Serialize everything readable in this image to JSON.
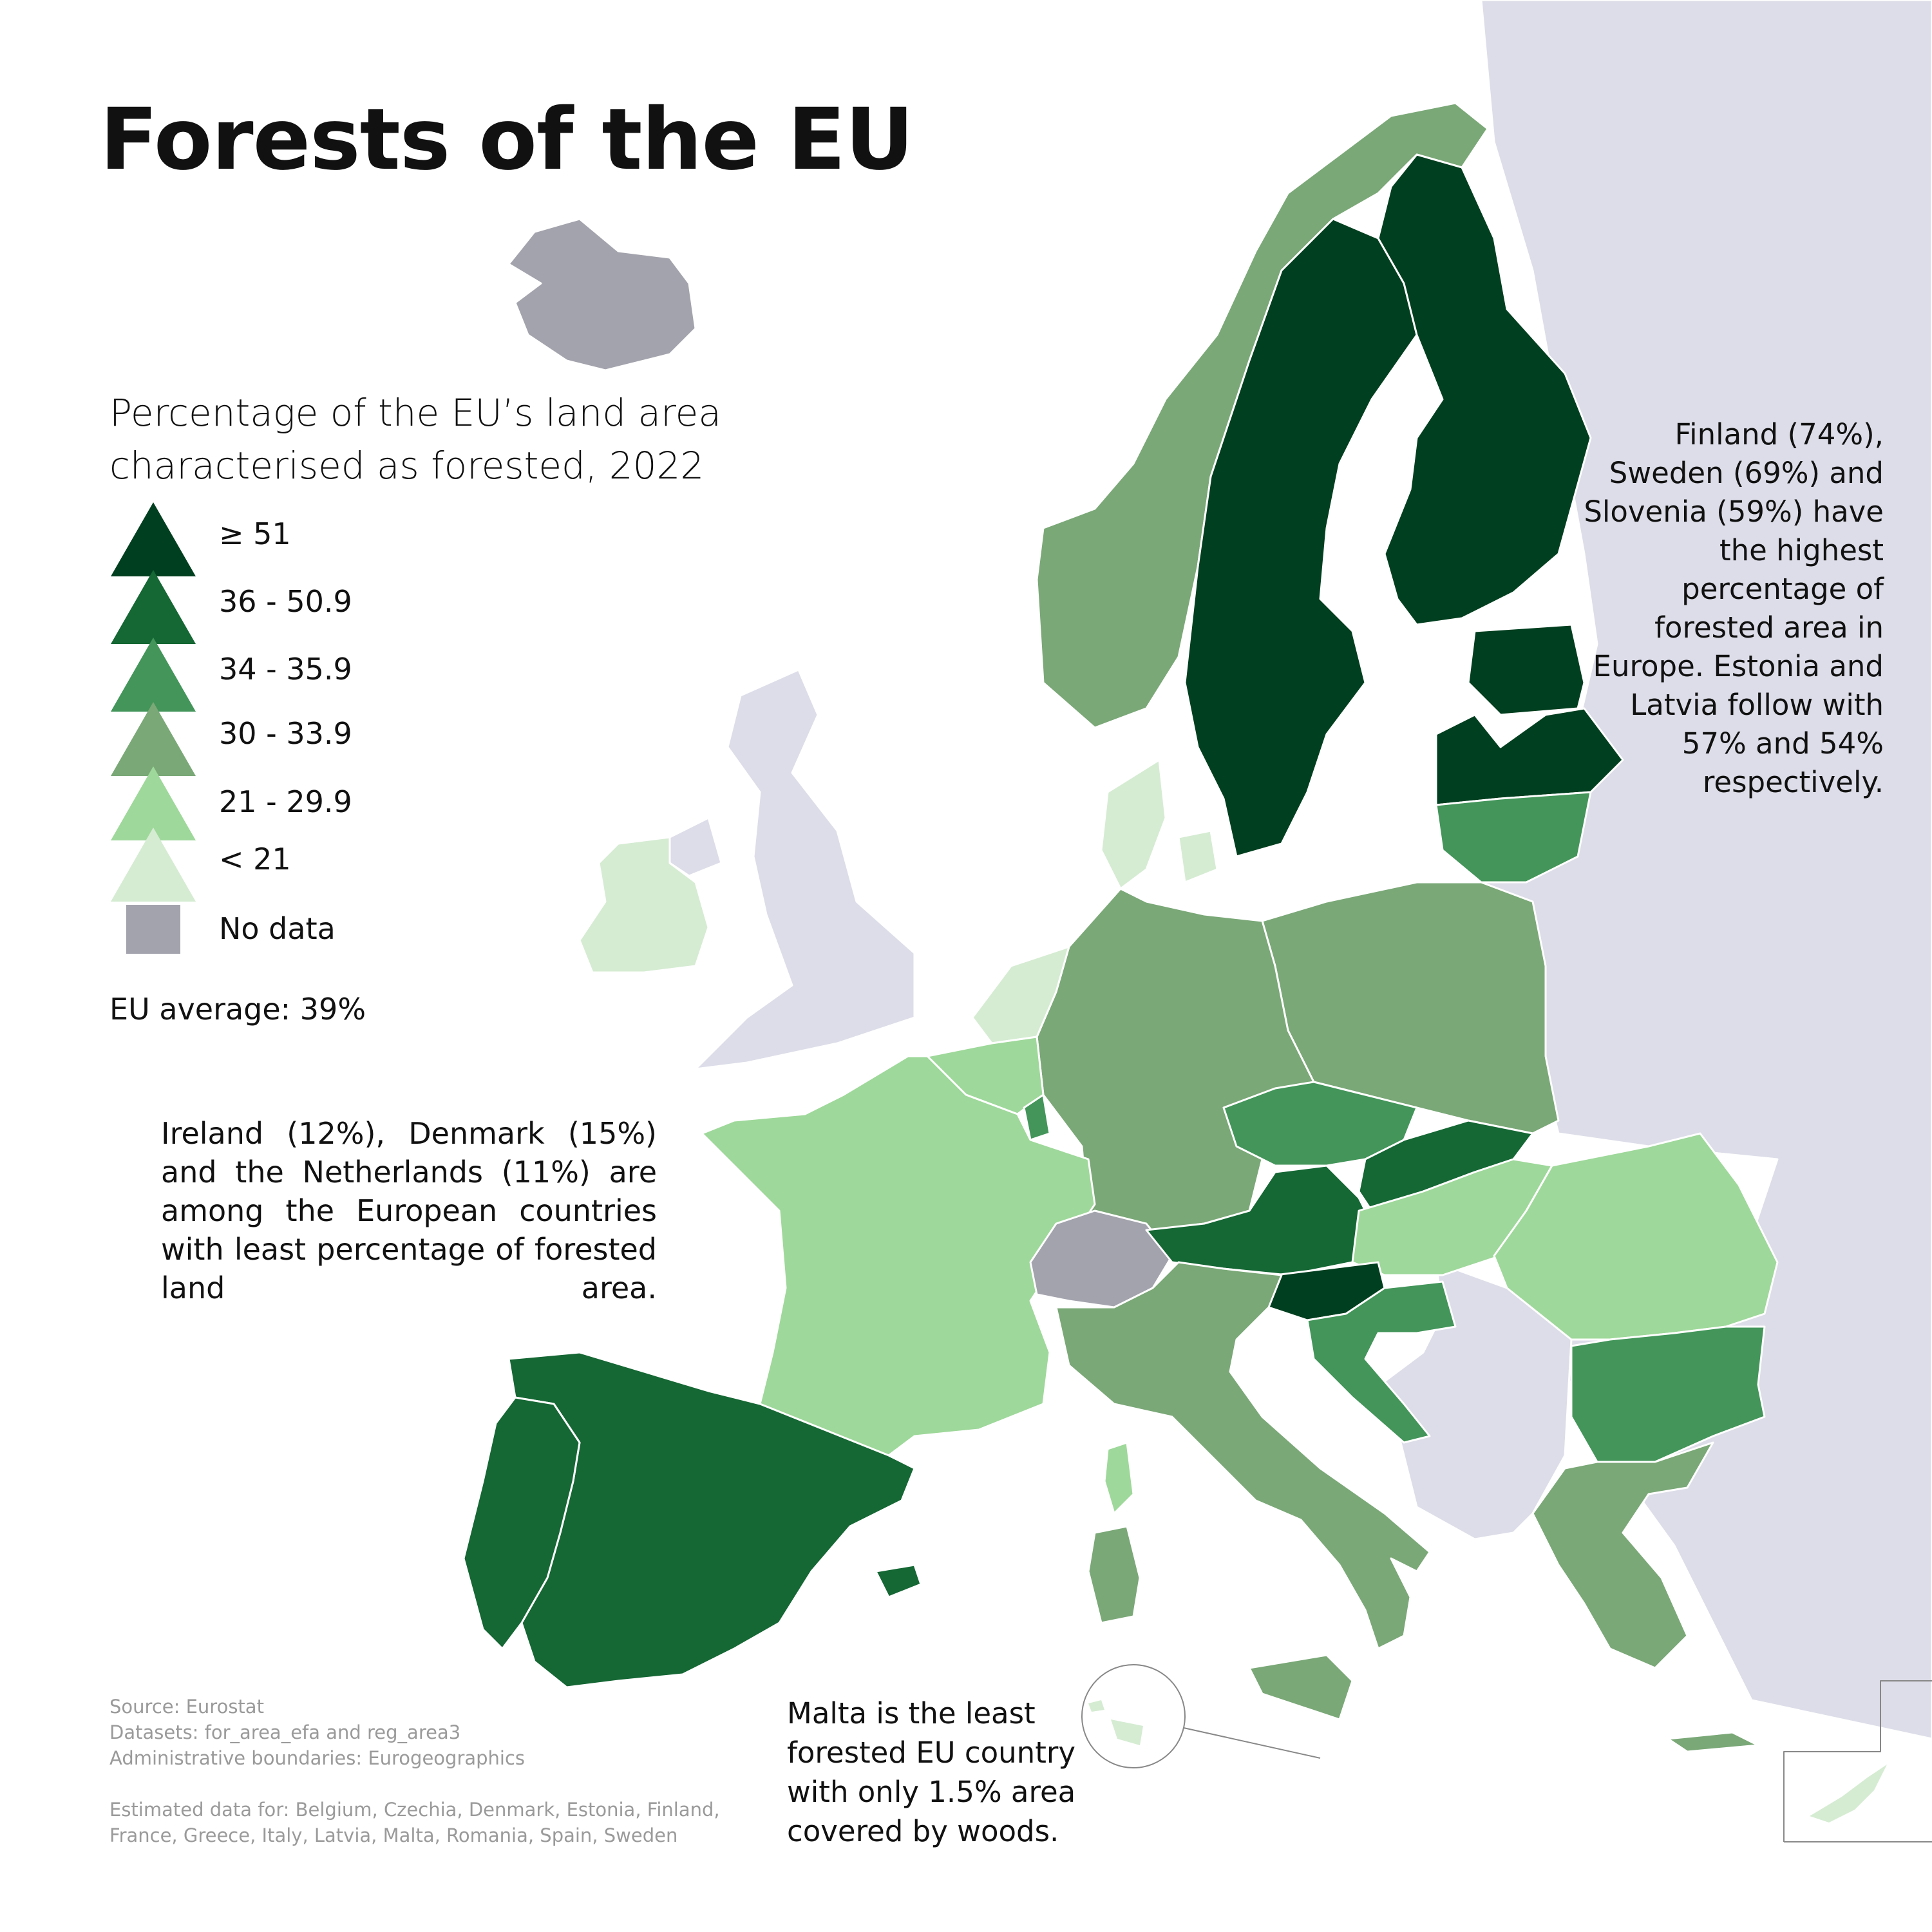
{
  "title": "Forests of the EU",
  "legend": {
    "title": "Percentage of the EU’s land area characterised as forested, 2022",
    "items": [
      {
        "label": "≥ 51",
        "color": "#003f1f"
      },
      {
        "label": "36 - 50.9",
        "color": "#156734"
      },
      {
        "label": "34 - 35.9",
        "color": "#43955a"
      },
      {
        "label": "30 - 33.9",
        "color": "#7aa877"
      },
      {
        "label": "21 - 29.9",
        "color": "#9ed89a"
      },
      {
        "label": "< 21",
        "color": "#d5ecd2"
      }
    ],
    "no_data": {
      "label": "No data",
      "color": "#a3a3ad"
    }
  },
  "eu_average": "EU average: 39%",
  "notes": {
    "left": "Ireland (12%), Denmark (15%) and the Netherlands (11%) are among the European countries with least percentage of forested land area.",
    "right": "Finland (74%), Sweden (69%) and Slovenia (59%) have the highest percentage of forested area in Europe. Estonia and Latvia follow with 57% and 54% respectively.",
    "malta": "Malta is the least forested EU country with only 1.5% area covered by woods."
  },
  "sources": {
    "source": "Source: Eurostat",
    "datasets": "Datasets: for_area_efa and reg_area3",
    "boundaries": "Administrative boundaries: Eurogeographics",
    "estimated": "Estimated data for: Belgium, Czechia, Denmark, Estonia, Finland, France, Greece, Italy, Latvia, Malta, Romania, Spain, Sweden"
  },
  "colors": {
    "non_eu": "#dcdde8",
    "no_data": "#a3a3ad",
    "sea": "#ffffff",
    "border": "#ffffff"
  },
  "countries": {
    "finland": {
      "value": 74,
      "class": "≥ 51"
    },
    "sweden": {
      "value": 69,
      "class": "≥ 51"
    },
    "slovenia": {
      "value": 59,
      "class": "≥ 51"
    },
    "estonia": {
      "value": 57,
      "class": "≥ 51"
    },
    "latvia": {
      "value": 54,
      "class": "≥ 51"
    },
    "spain": {
      "class": "36 - 50.9"
    },
    "portugal": {
      "class": "36 - 50.9"
    },
    "austria": {
      "class": "36 - 50.9"
    },
    "slovakia": {
      "class": "36 - 50.9"
    },
    "lithuania": {
      "class": "34 - 35.9"
    },
    "czechia": {
      "class": "34 - 35.9"
    },
    "croatia": {
      "class": "34 - 35.9"
    },
    "bulgaria": {
      "class": "34 - 35.9"
    },
    "luxembourg": {
      "class": "34 - 35.9"
    },
    "germany": {
      "class": "30 - 33.9"
    },
    "poland": {
      "class": "30 - 33.9"
    },
    "italy": {
      "class": "30 - 33.9"
    },
    "greece": {
      "class": "30 - 33.9"
    },
    "norway": {
      "class": "30 - 33.9"
    },
    "france": {
      "class": "21 - 29.9"
    },
    "belgium": {
      "class": "21 - 29.9"
    },
    "hungary": {
      "class": "21 - 29.9"
    },
    "romania": {
      "class": "21 - 29.9"
    },
    "ireland": {
      "value": 12,
      "class": "< 21"
    },
    "denmark": {
      "value": 15,
      "class": "< 21"
    },
    "netherlands": {
      "value": 11,
      "class": "< 21"
    },
    "malta": {
      "value": 1.5,
      "class": "< 21"
    },
    "cyprus": {
      "class": "< 21"
    },
    "switzerland": {
      "class": "No data"
    },
    "iceland": {
      "class": "No data"
    }
  }
}
